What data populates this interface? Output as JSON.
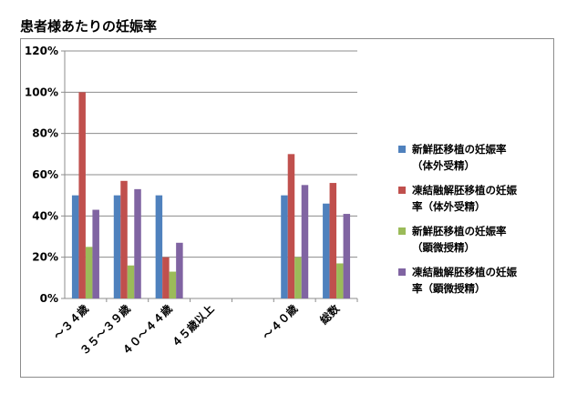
{
  "chart_data": {
    "type": "bar",
    "title": "患者様あたりの妊娠率",
    "categories": [
      "～３４歳",
      "３５～３９歳",
      "４０～４４歳",
      "４５歳以上",
      "",
      "～４０歳",
      "総数"
    ],
    "ylim": [
      0,
      120
    ],
    "yticks": [
      "0%",
      "20%",
      "40%",
      "60%",
      "80%",
      "100%",
      "120%"
    ],
    "grid": true,
    "legend_position": "right",
    "series": [
      {
        "name_lines": [
          "新鮮胚移植の妊娠率",
          "（体外受精）"
        ],
        "color": "#4f81bd",
        "values": [
          50,
          50,
          50,
          null,
          null,
          50,
          46
        ]
      },
      {
        "name_lines": [
          "凍結融解胚移植の妊娠",
          "率（体外受精）"
        ],
        "color": "#c0504d",
        "values": [
          100,
          57,
          20,
          null,
          null,
          70,
          56
        ]
      },
      {
        "name_lines": [
          "新鮮胚移植の妊娠率",
          "（顕微授精）"
        ],
        "color": "#9bbb59",
        "values": [
          25,
          16,
          13,
          null,
          null,
          20,
          17
        ]
      },
      {
        "name_lines": [
          "凍結融解胚移植の妊娠",
          "率（顕微授精）"
        ],
        "color": "#8064a2",
        "values": [
          43,
          53,
          27,
          null,
          null,
          55,
          41
        ]
      }
    ]
  }
}
